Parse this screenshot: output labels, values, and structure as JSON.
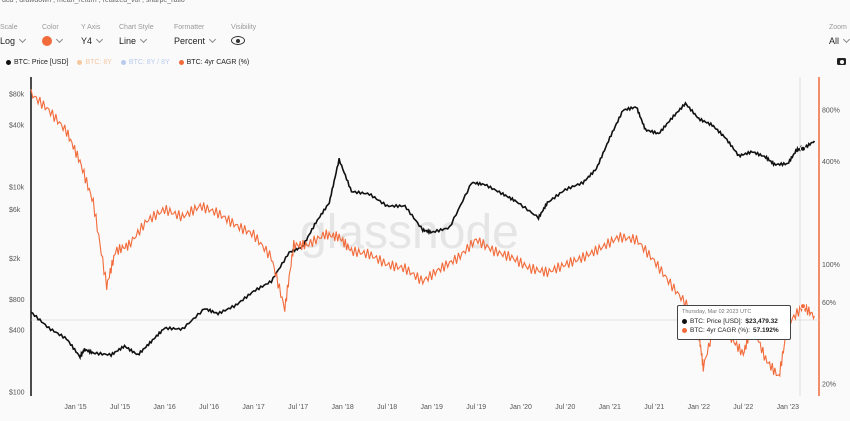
{
  "top_links": [
    "dca",
    "drawdown",
    "mean_return",
    "realized_vol",
    "sharpe_ratio"
  ],
  "controls": {
    "scale": {
      "label": "Scale",
      "value": "Log"
    },
    "color": {
      "label": "Color",
      "value_color": "#f26b3a"
    },
    "y_axis": {
      "label": "Y Axis",
      "value": "Y4"
    },
    "chart_style": {
      "label": "Chart Style",
      "value": "Line"
    },
    "formatter": {
      "label": "Formatter",
      "value": "Percent"
    },
    "visibility": {
      "label": "Visibility",
      "icon": "eye-icon"
    },
    "zoom": {
      "label": "Zoom",
      "value": "All"
    }
  },
  "legend": [
    {
      "label": "BTC: Price [USD]",
      "color": "#111111",
      "dim": false
    },
    {
      "label": "BTC: 8Y",
      "color": "#f2a23a",
      "dim": true
    },
    {
      "label": "BTC: 8Y / 8Y",
      "color": "#5b8de0",
      "dim": true
    },
    {
      "label": "BTC: 4yr CAGR (%)",
      "color": "#f26b3a",
      "dim": false
    }
  ],
  "watermark": "glassnode",
  "tooltip": {
    "date": "Thursday, Mar 02 2023 UTC",
    "price_label": "BTC: Price [USD]:",
    "price_value": "$23,479.32",
    "cagr_label": "BTC: 4yr CAGR (%):",
    "cagr_value": "57.192%"
  },
  "chart_data": {
    "type": "line",
    "x_labels": [
      "Jan '15",
      "Jul '15",
      "Jan '16",
      "Jul '16",
      "Jan '17",
      "Jul '17",
      "Jan '18",
      "Jul '18",
      "Jan '19",
      "Jul '19",
      "Jan '20",
      "Jul '20",
      "Jan '21",
      "Jul '21",
      "Jan '22",
      "Jul '22",
      "Jan '23"
    ],
    "y_left_ticks": [
      "$80k",
      "$40k",
      "$10k",
      "$6k",
      "$2k",
      "$800",
      "$400",
      "$100"
    ],
    "y_right_ticks": [
      "800%",
      "400%",
      "100%",
      "60%",
      "20%"
    ],
    "y_left_scale": "log",
    "y_right_scale": "log",
    "series": [
      {
        "name": "BTC: Price [USD]",
        "color": "#111111",
        "points": [
          [
            2014.5,
            600
          ],
          [
            2014.7,
            420
          ],
          [
            2014.9,
            330
          ],
          [
            2015.05,
            220
          ],
          [
            2015.1,
            260
          ],
          [
            2015.2,
            240
          ],
          [
            2015.4,
            230
          ],
          [
            2015.55,
            280
          ],
          [
            2015.7,
            230
          ],
          [
            2015.85,
            310
          ],
          [
            2016.0,
            420
          ],
          [
            2016.2,
            410
          ],
          [
            2016.45,
            650
          ],
          [
            2016.6,
            580
          ],
          [
            2016.8,
            700
          ],
          [
            2017.0,
            960
          ],
          [
            2017.2,
            1200
          ],
          [
            2017.4,
            2300
          ],
          [
            2017.55,
            2600
          ],
          [
            2017.7,
            4500
          ],
          [
            2017.85,
            7000
          ],
          [
            2017.96,
            18500
          ],
          [
            2018.1,
            9000
          ],
          [
            2018.3,
            8500
          ],
          [
            2018.5,
            6500
          ],
          [
            2018.7,
            6500
          ],
          [
            2018.9,
            3800
          ],
          [
            2019.0,
            3600
          ],
          [
            2019.2,
            4000
          ],
          [
            2019.45,
            11000
          ],
          [
            2019.6,
            10500
          ],
          [
            2019.8,
            8500
          ],
          [
            2019.95,
            7200
          ],
          [
            2020.2,
            5000
          ],
          [
            2020.3,
            7000
          ],
          [
            2020.5,
            9400
          ],
          [
            2020.7,
            11000
          ],
          [
            2020.85,
            15000
          ],
          [
            2021.0,
            30000
          ],
          [
            2021.15,
            56000
          ],
          [
            2021.3,
            60000
          ],
          [
            2021.4,
            36000
          ],
          [
            2021.55,
            33000
          ],
          [
            2021.7,
            47000
          ],
          [
            2021.85,
            65000
          ],
          [
            2022.0,
            46000
          ],
          [
            2022.15,
            40000
          ],
          [
            2022.3,
            30000
          ],
          [
            2022.45,
            20000
          ],
          [
            2022.6,
            22000
          ],
          [
            2022.75,
            19500
          ],
          [
            2022.85,
            16500
          ],
          [
            2023.0,
            16800
          ],
          [
            2023.1,
            23000
          ],
          [
            2023.17,
            23479
          ],
          [
            2023.3,
            28000
          ]
        ]
      },
      {
        "name": "BTC: 4yr CAGR (%)",
        "color": "#f26b3a",
        "points": [
          [
            2014.5,
            1000
          ],
          [
            2014.7,
            800
          ],
          [
            2014.9,
            600
          ],
          [
            2015.05,
            400
          ],
          [
            2015.2,
            230
          ],
          [
            2015.35,
            75
          ],
          [
            2015.45,
            120
          ],
          [
            2015.6,
            130
          ],
          [
            2015.8,
            180
          ],
          [
            2016.0,
            210
          ],
          [
            2016.2,
            190
          ],
          [
            2016.4,
            220
          ],
          [
            2016.6,
            200
          ],
          [
            2016.8,
            170
          ],
          [
            2017.0,
            150
          ],
          [
            2017.2,
            110
          ],
          [
            2017.35,
            55
          ],
          [
            2017.45,
            130
          ],
          [
            2017.6,
            130
          ],
          [
            2017.8,
            150
          ],
          [
            2017.96,
            145
          ],
          [
            2018.1,
            120
          ],
          [
            2018.3,
            115
          ],
          [
            2018.5,
            100
          ],
          [
            2018.7,
            95
          ],
          [
            2018.9,
            80
          ],
          [
            2019.1,
            95
          ],
          [
            2019.3,
            110
          ],
          [
            2019.5,
            140
          ],
          [
            2019.7,
            120
          ],
          [
            2019.9,
            110
          ],
          [
            2020.1,
            95
          ],
          [
            2020.3,
            90
          ],
          [
            2020.5,
            100
          ],
          [
            2020.7,
            110
          ],
          [
            2020.9,
            125
          ],
          [
            2021.1,
            145
          ],
          [
            2021.3,
            140
          ],
          [
            2021.5,
            105
          ],
          [
            2021.7,
            75
          ],
          [
            2021.9,
            55
          ],
          [
            2022.0,
            40
          ],
          [
            2022.05,
            25
          ],
          [
            2022.2,
            50
          ],
          [
            2022.35,
            38
          ],
          [
            2022.5,
            30
          ],
          [
            2022.6,
            45
          ],
          [
            2022.75,
            28
          ],
          [
            2022.9,
            22
          ],
          [
            2023.0,
            45
          ],
          [
            2023.17,
            57.192
          ],
          [
            2023.3,
            50
          ]
        ]
      }
    ],
    "y_left_range": [
      100,
      110000
    ],
    "y_right_range": [
      18,
      1200
    ],
    "x_range": [
      2014.5,
      2023.35
    ],
    "grid": false,
    "legend_position": "top-left"
  }
}
